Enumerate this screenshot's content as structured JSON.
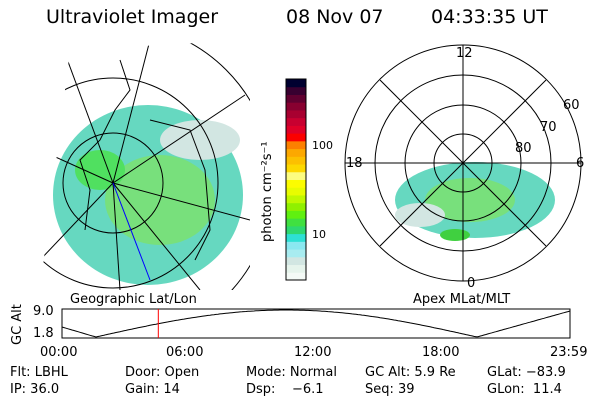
{
  "header": {
    "instrument": "Ultraviolet Imager",
    "date": "08 Nov 07",
    "time": "04:33:35 UT"
  },
  "left_panel": {
    "label": "Geographic Lat/Lon"
  },
  "right_panel": {
    "label": "Apex MLat/MLT",
    "mlt_labels": [
      "12",
      "18",
      "6",
      "0"
    ],
    "mlat_labels": [
      "60",
      "70",
      "80"
    ]
  },
  "colorbar": {
    "unit_label": "photon cm⁻²s⁻¹",
    "ticks": [
      "100",
      "10"
    ],
    "colors": [
      "#f4faf6",
      "#e6f4ec",
      "#d2e6e2",
      "#a8ecf0",
      "#8ae8f0",
      "#2ee0d4",
      "#2ed870",
      "#40e040",
      "#60f010",
      "#90f000",
      "#c0f800",
      "#e8fc00",
      "#fcfc00",
      "#fcfc80",
      "#fcd800",
      "#fcc000",
      "#fca800",
      "#fc8000",
      "#fc0000",
      "#e00028",
      "#c80030",
      "#a80030",
      "#880030",
      "#600030",
      "#380030",
      "#000030"
    ]
  },
  "altitude_plot": {
    "ylabel": "GC Alt",
    "yticks": [
      "9.0",
      "1.8"
    ],
    "xticks": [
      "00:00",
      "06:00",
      "12:00",
      "18:00",
      "23:59"
    ],
    "current_time_marker": "04:33",
    "marker_color": "#ff0000"
  },
  "info": {
    "filter": "Flt: LBHL",
    "door": "Door: Open",
    "mode": "Mode: Normal",
    "gc_alt": "GC Alt: 5.9 Re",
    "glat": "GLat: −83.9",
    "ip": "IP: 36.0",
    "gain": "Gain: 14",
    "dsp": "Dsp:    −6.1",
    "seq": "Seq: 39",
    "glon": "GLon:  11.4"
  }
}
